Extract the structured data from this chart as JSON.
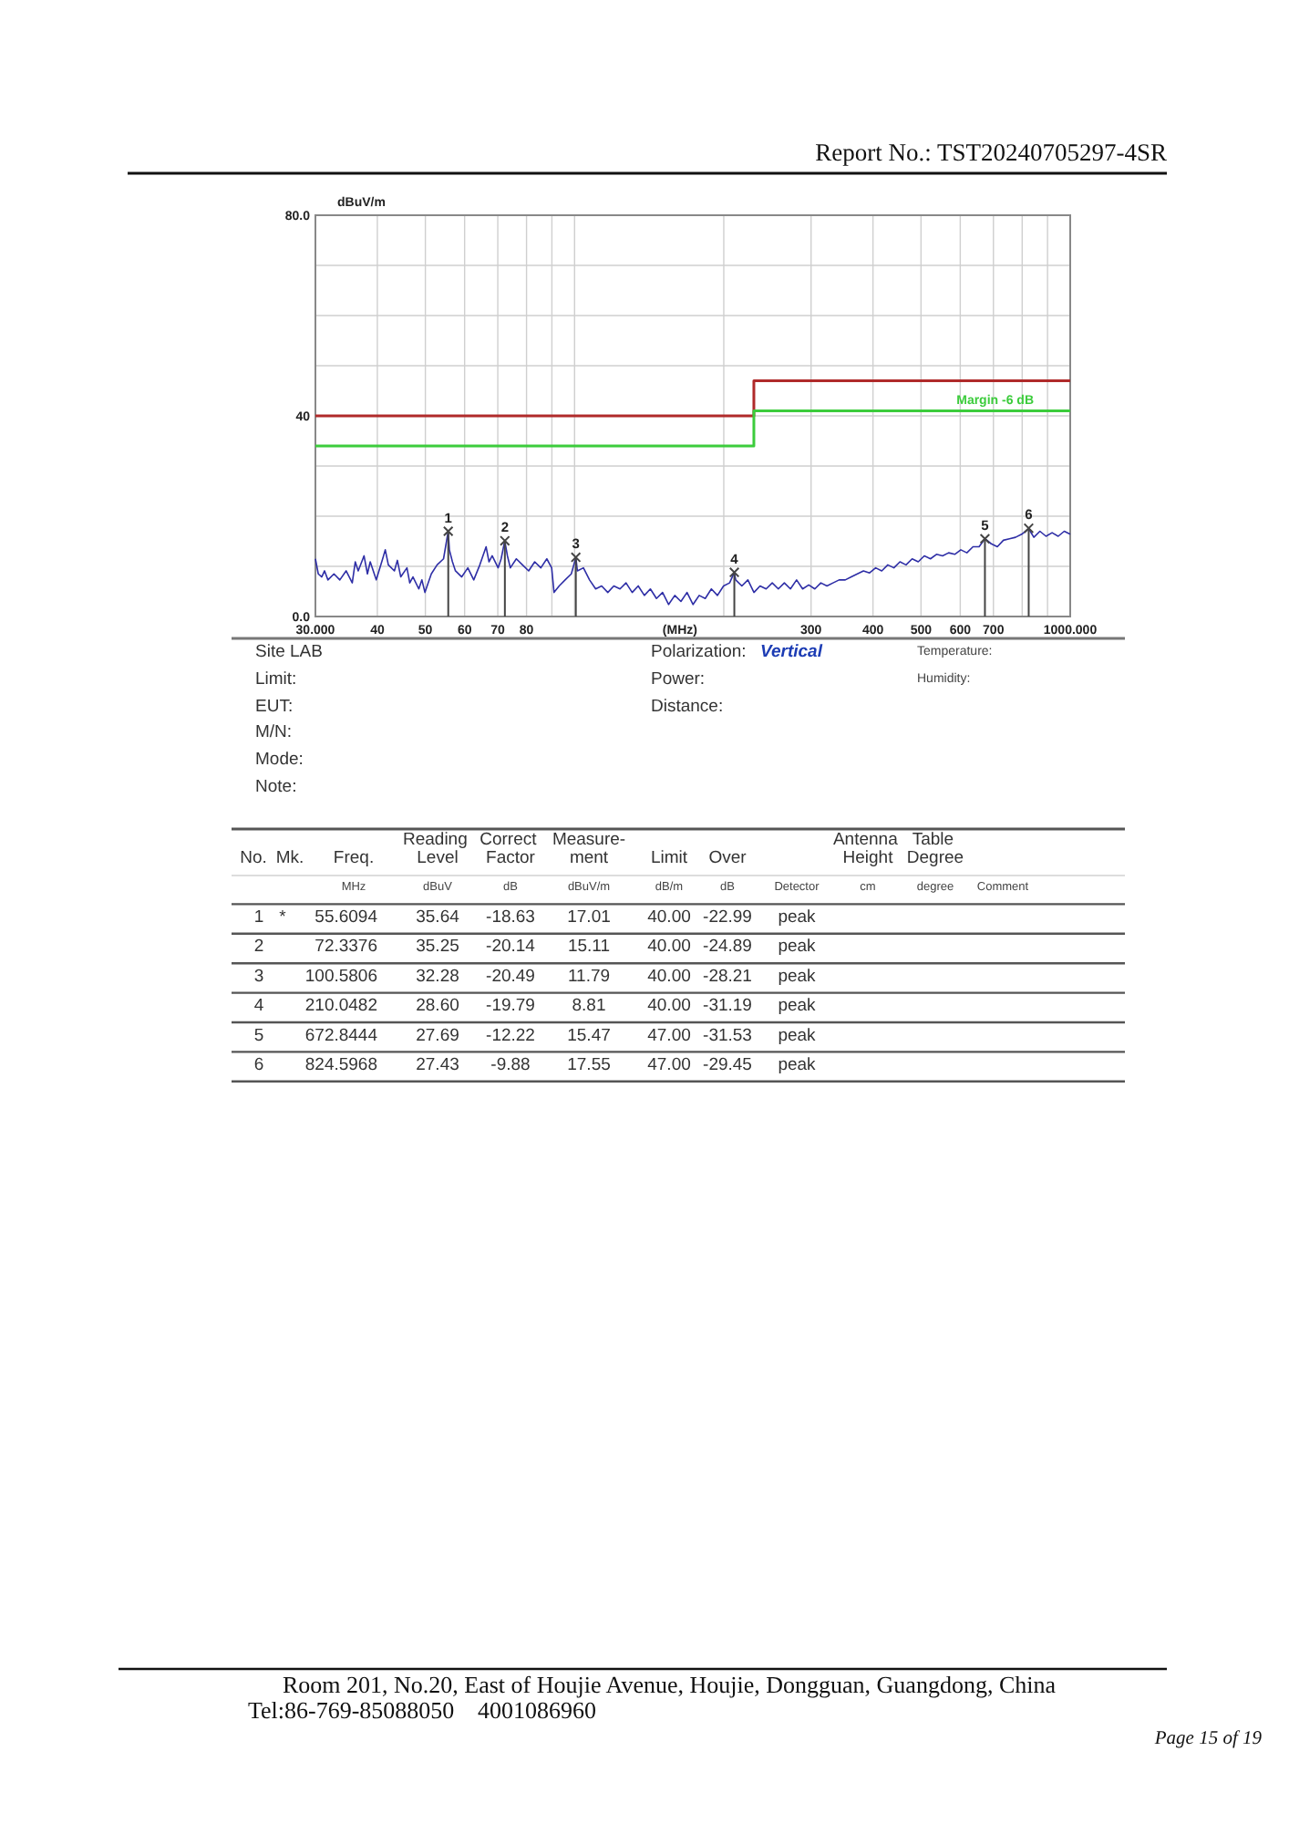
{
  "chart_data": [
    {
      "type": "other",
      "annotations": [
        "Report No.: TST20240705297-4SR"
      ]
    },
    {
      "type": "line",
      "ylabel": "dBuV/m",
      "xlabel": "(MHz)",
      "log": "x",
      "grid": true,
      "xlim": [
        30,
        1000
      ],
      "ylim": [
        0,
        80
      ],
      "xticks": [
        {
          "value": 30,
          "label": "30.000"
        },
        40,
        50,
        60,
        70,
        80,
        {
          "value": 90,
          "label": null
        },
        {
          "value": 100,
          "label": null
        },
        {
          "value": 200,
          "label": null
        },
        300,
        400,
        500,
        600,
        700,
        {
          "value": 800,
          "label": null
        },
        {
          "value": 900,
          "label": null
        },
        {
          "value": 1000,
          "label": "1000.000"
        }
      ],
      "yticks": [
        {
          "value": 0,
          "label": "0.0"
        },
        {
          "value": 10,
          "label": null
        },
        {
          "value": 20,
          "label": null
        },
        {
          "value": 30,
          "label": null
        },
        40,
        {
          "value": 50,
          "label": null
        },
        {
          "value": 60,
          "label": null
        },
        {
          "value": 70,
          "label": null
        },
        {
          "value": 80,
          "label": "80.0"
        }
      ],
      "annotations": [
        {
          "text": "1",
          "x": 55.6094,
          "y": 17.0
        },
        {
          "text": "2",
          "x": 72.3376,
          "y": 15.1
        },
        {
          "text": "3",
          "x": 100.5806,
          "y": 11.8
        },
        {
          "text": "4",
          "x": 210.0482,
          "y": 8.8
        },
        {
          "text": "5",
          "x": 672.8444,
          "y": 15.5
        },
        {
          "text": "6",
          "x": 824.5968,
          "y": 17.6
        },
        "Site LAB",
        "Limit:",
        "EUT:",
        "M/N:",
        "Mode:",
        "Note:",
        "Polarization:",
        "Vertical",
        "Power:",
        "Distance:",
        "Temperature:",
        "Humidity:",
        "No.",
        "Mk.",
        "Freq.",
        "Reading Level",
        "Correct Factor",
        "Measure-ment",
        "Limit",
        "Over",
        "Antenna Height",
        "Table Degree",
        "MHz",
        "dBuV",
        "dB",
        "dBuV/m",
        "dB/m",
        "dB",
        "Detector",
        "cm",
        "degree",
        "Comment",
        "1 * 55.6094 35.64 -18.63 17.01 40.00 -22.99 peak",
        "2 72.3376 35.25 -20.14 15.11 40.00 -24.89 peak",
        "3 100.5806 32.28 -20.49 11.79 40.00 -28.21 peak",
        "4 210.0482 28.60 -19.79 8.81 40.00 -31.19 peak",
        "5 672.8444 27.69 -12.22 15.47 47.00 -31.53 peak",
        "6 824.5968 27.43 -9.88 17.55 47.00 -29.45 peak"
      ],
      "series": [
        {
          "type": "step",
          "color": "#b02a2a",
          "x": [
            30,
            230,
            1000
          ],
          "values": [
            40,
            47,
            47
          ]
        },
        {
          "type": "step",
          "name": "Margin -6 dB",
          "color": "#3ccc3c",
          "x": [
            30,
            230,
            1000
          ],
          "values": [
            34,
            41,
            41
          ]
        },
        {
          "type": "line",
          "color": "#2e2ea6",
          "x": [
            30,
            30.4,
            30.9,
            31.3,
            31.8,
            32.7,
            33.6,
            34.6,
            35.6,
            36.1,
            36.6,
            37.6,
            38.2,
            38.7,
            39.8,
            41,
            41.5,
            42.1,
            43.3,
            43.9,
            44.6,
            45.9,
            46.5,
            47.2,
            48.5,
            49.2,
            49.9,
            51.4,
            52.8,
            54.4,
            55.6,
            55.9,
            56.7,
            57.5,
            59.2,
            60.9,
            62.6,
            64.4,
            66.3,
            67.2,
            68.2,
            70.1,
            71.1,
            72.3,
            73.2,
            74.2,
            76.3,
            78.5,
            80.8,
            83.1,
            85.5,
            87.9,
            89.9,
            90.9,
            93.1,
            95.7,
            98.5,
            100.6,
            101.3,
            104.2,
            107.2,
            110.3,
            113.4,
            116.7,
            120,
            123.5,
            127,
            130.7,
            134.4,
            138.3,
            142.2,
            146.3,
            150.5,
            154.8,
            159.3,
            163.9,
            168.6,
            173.4,
            178.4,
            183.5,
            188.8,
            194.2,
            199.8,
            205.5,
            210,
            211.4,
            217.5,
            223.7,
            230.1,
            236.7,
            243.5,
            250.5,
            257.7,
            265,
            272.6,
            280.5,
            288.5,
            296.8,
            305.3,
            314,
            323,
            332.3,
            341.8,
            351.6,
            361.7,
            372,
            382.7,
            393.7,
            405,
            416.6,
            428.5,
            440.8,
            453.4,
            466.4,
            479.8,
            493.6,
            507.7,
            522.3,
            537.3,
            552.7,
            568.5,
            584.8,
            601.6,
            618.8,
            636.6,
            654.8,
            672.8,
            692.9,
            712.8,
            733.2,
            754.2,
            775.8,
            798.1,
            824.6,
            844.5,
            868.7,
            893.6,
            919.2,
            945.6,
            972.7,
            1000
          ],
          "values": [
            11.5,
            8.5,
            7.9,
            9.1,
            7.3,
            8.5,
            7.3,
            9.1,
            6.7,
            10.9,
            9.1,
            12.1,
            8.5,
            10.9,
            7.3,
            11.5,
            13.3,
            10.3,
            9.1,
            11.2,
            7.9,
            9.7,
            6.7,
            7.9,
            5.5,
            7.3,
            4.8,
            8.5,
            10.3,
            11.5,
            17,
            13.3,
            10.9,
            9.1,
            7.9,
            9.7,
            7.3,
            10.3,
            13.9,
            10.9,
            12.1,
            9.7,
            11.5,
            15.1,
            12.1,
            9.7,
            11.5,
            10.3,
            9.1,
            10.9,
            9.7,
            11.5,
            9.7,
            4.8,
            6.1,
            7.3,
            8.5,
            11.8,
            9.1,
            9.7,
            7.3,
            5.5,
            6.1,
            4.8,
            6.1,
            5.5,
            6.7,
            4.8,
            6.1,
            4.2,
            5.5,
            3.6,
            4.8,
            2.4,
            4.2,
            3,
            4.8,
            2.4,
            4.2,
            3.6,
            5.5,
            4.2,
            6.1,
            6.7,
            8.8,
            7.3,
            6.1,
            7.3,
            4.8,
            6.1,
            5.5,
            6.7,
            5.5,
            6.7,
            5.5,
            7.3,
            5.5,
            6.3,
            5.5,
            6.7,
            6.1,
            6.7,
            7.3,
            7.3,
            7.9,
            8.5,
            9.1,
            8.7,
            9.7,
            9.1,
            10.3,
            9.7,
            10.9,
            10.3,
            11.5,
            10.9,
            12.1,
            11.5,
            12.4,
            12.1,
            12.7,
            12.4,
            13.3,
            12.7,
            13.9,
            13.9,
            15.5,
            14.5,
            13.9,
            15.2,
            15.5,
            15.8,
            16.4,
            17.5,
            15.8,
            17,
            16,
            16.7,
            16,
            17,
            16.4
          ]
        },
        {
          "type": "lollipop",
          "color": "#444444",
          "marker": "cross",
          "x": [
            55.6094,
            72.3376,
            100.5806,
            210.0482,
            672.8444,
            824.5968
          ],
          "values": [
            17.0,
            15.1,
            11.8,
            8.8,
            15.5,
            17.6
          ]
        }
      ]
    },
    {
      "type": "other",
      "annotations": [
        "Room 201, No.20, East of Houjie Avenue, Houjie, Dongguan, Guangdong, China",
        "Tel:86-769-85088050",
        "4001086960",
        "Page 15 of 19"
      ]
    }
  ]
}
